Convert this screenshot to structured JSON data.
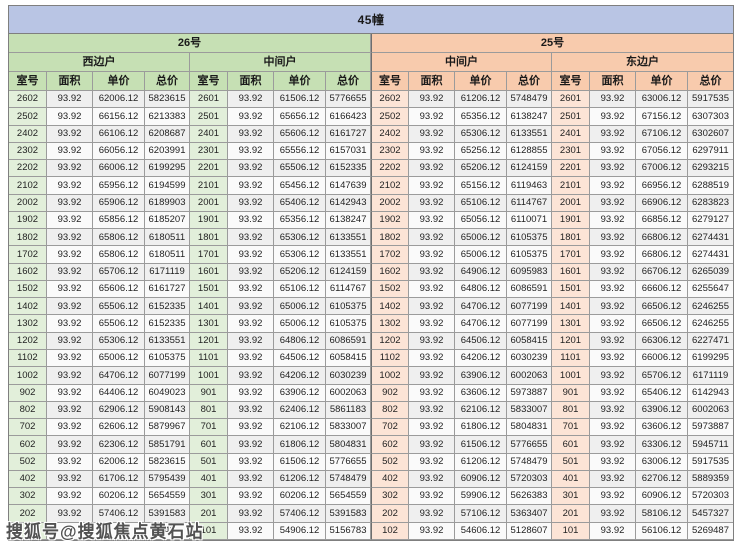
{
  "title": "45幢",
  "watermark": {
    "text": "搜狐号@搜狐焦点黄石站"
  },
  "colors": {
    "title_bg": "#b9c5e4",
    "green_header": "#c6e0b4",
    "green_room_cell": "#e2efda",
    "peach_header": "#f8cbad",
    "peach_room_cell": "#fce4d6"
  },
  "table": {
    "sections": [
      {
        "label": "26号",
        "theme": "green"
      },
      {
        "label": "25号",
        "theme": "peach"
      }
    ],
    "unit_types": [
      {
        "label": "西边户",
        "theme": "green"
      },
      {
        "label": "中间户",
        "theme": "green"
      },
      {
        "label": "中间户",
        "theme": "peach"
      },
      {
        "label": "东边户",
        "theme": "peach"
      }
    ],
    "columns": [
      "室号",
      "面积",
      "单价",
      "总价"
    ],
    "groups": [
      {
        "section": "26号",
        "unit": "西边户",
        "theme": "green",
        "rows": [
          [
            "2602",
            "93.92",
            "62006.12",
            "5823615"
          ],
          [
            "2502",
            "93.92",
            "66156.12",
            "6213383"
          ],
          [
            "2402",
            "93.92",
            "66106.12",
            "6208687"
          ],
          [
            "2302",
            "93.92",
            "66056.12",
            "6203991"
          ],
          [
            "2202",
            "93.92",
            "66006.12",
            "6199295"
          ],
          [
            "2102",
            "93.92",
            "65956.12",
            "6194599"
          ],
          [
            "2002",
            "93.92",
            "65906.12",
            "6189903"
          ],
          [
            "1902",
            "93.92",
            "65856.12",
            "6185207"
          ],
          [
            "1802",
            "93.92",
            "65806.12",
            "6180511"
          ],
          [
            "1702",
            "93.92",
            "65806.12",
            "6180511"
          ],
          [
            "1602",
            "93.92",
            "65706.12",
            "6171119"
          ],
          [
            "1502",
            "93.92",
            "65606.12",
            "6161727"
          ],
          [
            "1402",
            "93.92",
            "65506.12",
            "6152335"
          ],
          [
            "1302",
            "93.92",
            "65506.12",
            "6152335"
          ],
          [
            "1202",
            "93.92",
            "65306.12",
            "6133551"
          ],
          [
            "1102",
            "93.92",
            "65006.12",
            "6105375"
          ],
          [
            "1002",
            "93.92",
            "64706.12",
            "6077199"
          ],
          [
            "902",
            "93.92",
            "64406.12",
            "6049023"
          ],
          [
            "802",
            "93.92",
            "62906.12",
            "5908143"
          ],
          [
            "702",
            "93.92",
            "62606.12",
            "5879967"
          ],
          [
            "602",
            "93.92",
            "62306.12",
            "5851791"
          ],
          [
            "502",
            "93.92",
            "62006.12",
            "5823615"
          ],
          [
            "402",
            "93.92",
            "61706.12",
            "5795439"
          ],
          [
            "302",
            "93.92",
            "60206.12",
            "5654559"
          ],
          [
            "202",
            "93.92",
            "57406.12",
            "5391583"
          ],
          [
            "",
            "",
            "",
            "743"
          ]
        ]
      },
      {
        "section": "26号",
        "unit": "中间户",
        "theme": "green",
        "rows": [
          [
            "2601",
            "93.92",
            "61506.12",
            "5776655"
          ],
          [
            "2501",
            "93.92",
            "65656.12",
            "6166423"
          ],
          [
            "2401",
            "93.92",
            "65606.12",
            "6161727"
          ],
          [
            "2301",
            "93.92",
            "65556.12",
            "6157031"
          ],
          [
            "2201",
            "93.92",
            "65506.12",
            "6152335"
          ],
          [
            "2101",
            "93.92",
            "65456.12",
            "6147639"
          ],
          [
            "2001",
            "93.92",
            "65406.12",
            "6142943"
          ],
          [
            "1901",
            "93.92",
            "65356.12",
            "6138247"
          ],
          [
            "1801",
            "93.92",
            "65306.12",
            "6133551"
          ],
          [
            "1701",
            "93.92",
            "65306.12",
            "6133551"
          ],
          [
            "1601",
            "93.92",
            "65206.12",
            "6124159"
          ],
          [
            "1501",
            "93.92",
            "65106.12",
            "6114767"
          ],
          [
            "1401",
            "93.92",
            "65006.12",
            "6105375"
          ],
          [
            "1301",
            "93.92",
            "65006.12",
            "6105375"
          ],
          [
            "1201",
            "93.92",
            "64806.12",
            "6086591"
          ],
          [
            "1101",
            "93.92",
            "64506.12",
            "6058415"
          ],
          [
            "1001",
            "93.92",
            "64206.12",
            "6030239"
          ],
          [
            "901",
            "93.92",
            "63906.12",
            "6002063"
          ],
          [
            "801",
            "93.92",
            "62406.12",
            "5861183"
          ],
          [
            "701",
            "93.92",
            "62106.12",
            "5833007"
          ],
          [
            "601",
            "93.92",
            "61806.12",
            "5804831"
          ],
          [
            "501",
            "93.92",
            "61506.12",
            "5776655"
          ],
          [
            "401",
            "93.92",
            "61206.12",
            "5748479"
          ],
          [
            "301",
            "93.92",
            "60206.12",
            "5654559"
          ],
          [
            "201",
            "93.92",
            "57406.12",
            "5391583"
          ],
          [
            "101",
            "93.92",
            "54906.12",
            "5156783"
          ]
        ]
      },
      {
        "section": "25号",
        "unit": "中间户",
        "theme": "peach",
        "rows": [
          [
            "2602",
            "93.92",
            "61206.12",
            "5748479"
          ],
          [
            "2502",
            "93.92",
            "65356.12",
            "6138247"
          ],
          [
            "2402",
            "93.92",
            "65306.12",
            "6133551"
          ],
          [
            "2302",
            "93.92",
            "65256.12",
            "6128855"
          ],
          [
            "2202",
            "93.92",
            "65206.12",
            "6124159"
          ],
          [
            "2102",
            "93.92",
            "65156.12",
            "6119463"
          ],
          [
            "2002",
            "93.92",
            "65106.12",
            "6114767"
          ],
          [
            "1902",
            "93.92",
            "65056.12",
            "6110071"
          ],
          [
            "1802",
            "93.92",
            "65006.12",
            "6105375"
          ],
          [
            "1702",
            "93.92",
            "65006.12",
            "6105375"
          ],
          [
            "1602",
            "93.92",
            "64906.12",
            "6095983"
          ],
          [
            "1502",
            "93.92",
            "64806.12",
            "6086591"
          ],
          [
            "1402",
            "93.92",
            "64706.12",
            "6077199"
          ],
          [
            "1302",
            "93.92",
            "64706.12",
            "6077199"
          ],
          [
            "1202",
            "93.92",
            "64506.12",
            "6058415"
          ],
          [
            "1102",
            "93.92",
            "64206.12",
            "6030239"
          ],
          [
            "1002",
            "93.92",
            "63906.12",
            "6002063"
          ],
          [
            "902",
            "93.92",
            "63606.12",
            "5973887"
          ],
          [
            "802",
            "93.92",
            "62106.12",
            "5833007"
          ],
          [
            "702",
            "93.92",
            "61806.12",
            "5804831"
          ],
          [
            "602",
            "93.92",
            "61506.12",
            "5776655"
          ],
          [
            "502",
            "93.92",
            "61206.12",
            "5748479"
          ],
          [
            "402",
            "93.92",
            "60906.12",
            "5720303"
          ],
          [
            "302",
            "93.92",
            "59906.12",
            "5626383"
          ],
          [
            "202",
            "93.92",
            "57106.12",
            "5363407"
          ],
          [
            "102",
            "93.92",
            "54606.12",
            "5128607"
          ]
        ]
      },
      {
        "section": "25号",
        "unit": "东边户",
        "theme": "peach",
        "rows": [
          [
            "2601",
            "93.92",
            "63006.12",
            "5917535"
          ],
          [
            "2501",
            "93.92",
            "67156.12",
            "6307303"
          ],
          [
            "2401",
            "93.92",
            "67106.12",
            "6302607"
          ],
          [
            "2301",
            "93.92",
            "67056.12",
            "6297911"
          ],
          [
            "2201",
            "93.92",
            "67006.12",
            "6293215"
          ],
          [
            "2101",
            "93.92",
            "66956.12",
            "6288519"
          ],
          [
            "2001",
            "93.92",
            "66906.12",
            "6283823"
          ],
          [
            "1901",
            "93.92",
            "66856.12",
            "6279127"
          ],
          [
            "1801",
            "93.92",
            "66806.12",
            "6274431"
          ],
          [
            "1701",
            "93.92",
            "66806.12",
            "6274431"
          ],
          [
            "1601",
            "93.92",
            "66706.12",
            "6265039"
          ],
          [
            "1501",
            "93.92",
            "66606.12",
            "6255647"
          ],
          [
            "1401",
            "93.92",
            "66506.12",
            "6246255"
          ],
          [
            "1301",
            "93.92",
            "66506.12",
            "6246255"
          ],
          [
            "1201",
            "93.92",
            "66306.12",
            "6227471"
          ],
          [
            "1101",
            "93.92",
            "66006.12",
            "6199295"
          ],
          [
            "1001",
            "93.92",
            "65706.12",
            "6171119"
          ],
          [
            "901",
            "93.92",
            "65406.12",
            "6142943"
          ],
          [
            "801",
            "93.92",
            "63906.12",
            "6002063"
          ],
          [
            "701",
            "93.92",
            "63606.12",
            "5973887"
          ],
          [
            "601",
            "93.92",
            "63306.12",
            "5945711"
          ],
          [
            "501",
            "93.92",
            "63006.12",
            "5917535"
          ],
          [
            "401",
            "93.92",
            "62706.12",
            "5889359"
          ],
          [
            "301",
            "93.92",
            "60906.12",
            "5720303"
          ],
          [
            "201",
            "93.92",
            "58106.12",
            "5457327"
          ],
          [
            "101",
            "93.92",
            "56106.12",
            "5269487"
          ]
        ]
      }
    ]
  }
}
